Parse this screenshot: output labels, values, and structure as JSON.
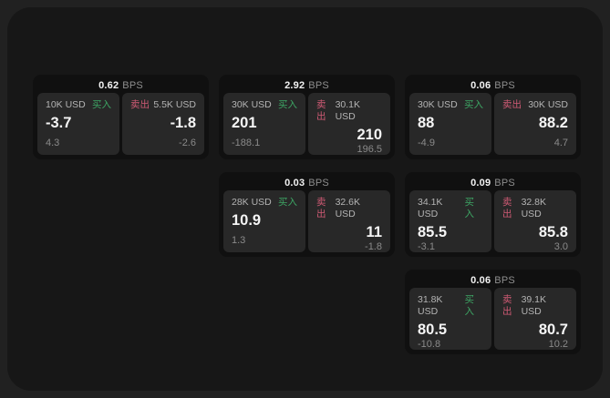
{
  "labels": {
    "bps_unit": "BPS",
    "buy": "买入",
    "sell": "卖出"
  },
  "colors": {
    "buy_green": "#3da564",
    "sell_red": "#cf5a74",
    "window_bg": "#171717",
    "card_bg": "#101010",
    "pane_bg": "#282828"
  },
  "cards": [
    {
      "bps": "0.62",
      "buy": {
        "size": "10K USD",
        "value": "-3.7",
        "sub": "4.3"
      },
      "sell": {
        "size": "5.5K USD",
        "value": "-1.8",
        "sub": "-2.6"
      }
    },
    {
      "bps": "2.92",
      "buy": {
        "size": "30K USD",
        "value": "201",
        "sub": "-188.1"
      },
      "sell": {
        "size": "30.1K USD",
        "value": "210",
        "sub": "196.5"
      }
    },
    {
      "bps": "0.06",
      "buy": {
        "size": "30K USD",
        "value": "88",
        "sub": "-4.9"
      },
      "sell": {
        "size": "30K USD",
        "value": "88.2",
        "sub": "4.7"
      }
    },
    {
      "bps": "0.03",
      "buy": {
        "size": "28K USD",
        "value": "10.9",
        "sub": "1.3"
      },
      "sell": {
        "size": "32.6K USD",
        "value": "11",
        "sub": "-1.8"
      }
    },
    {
      "bps": "0.09",
      "buy": {
        "size": "34.1K USD",
        "value": "85.5",
        "sub": "-3.1"
      },
      "sell": {
        "size": "32.8K USD",
        "value": "85.8",
        "sub": "3.0"
      }
    },
    {
      "bps": "0.06",
      "buy": {
        "size": "31.8K USD",
        "value": "80.5",
        "sub": "-10.8"
      },
      "sell": {
        "size": "39.1K USD",
        "value": "80.7",
        "sub": "10.2"
      }
    }
  ]
}
